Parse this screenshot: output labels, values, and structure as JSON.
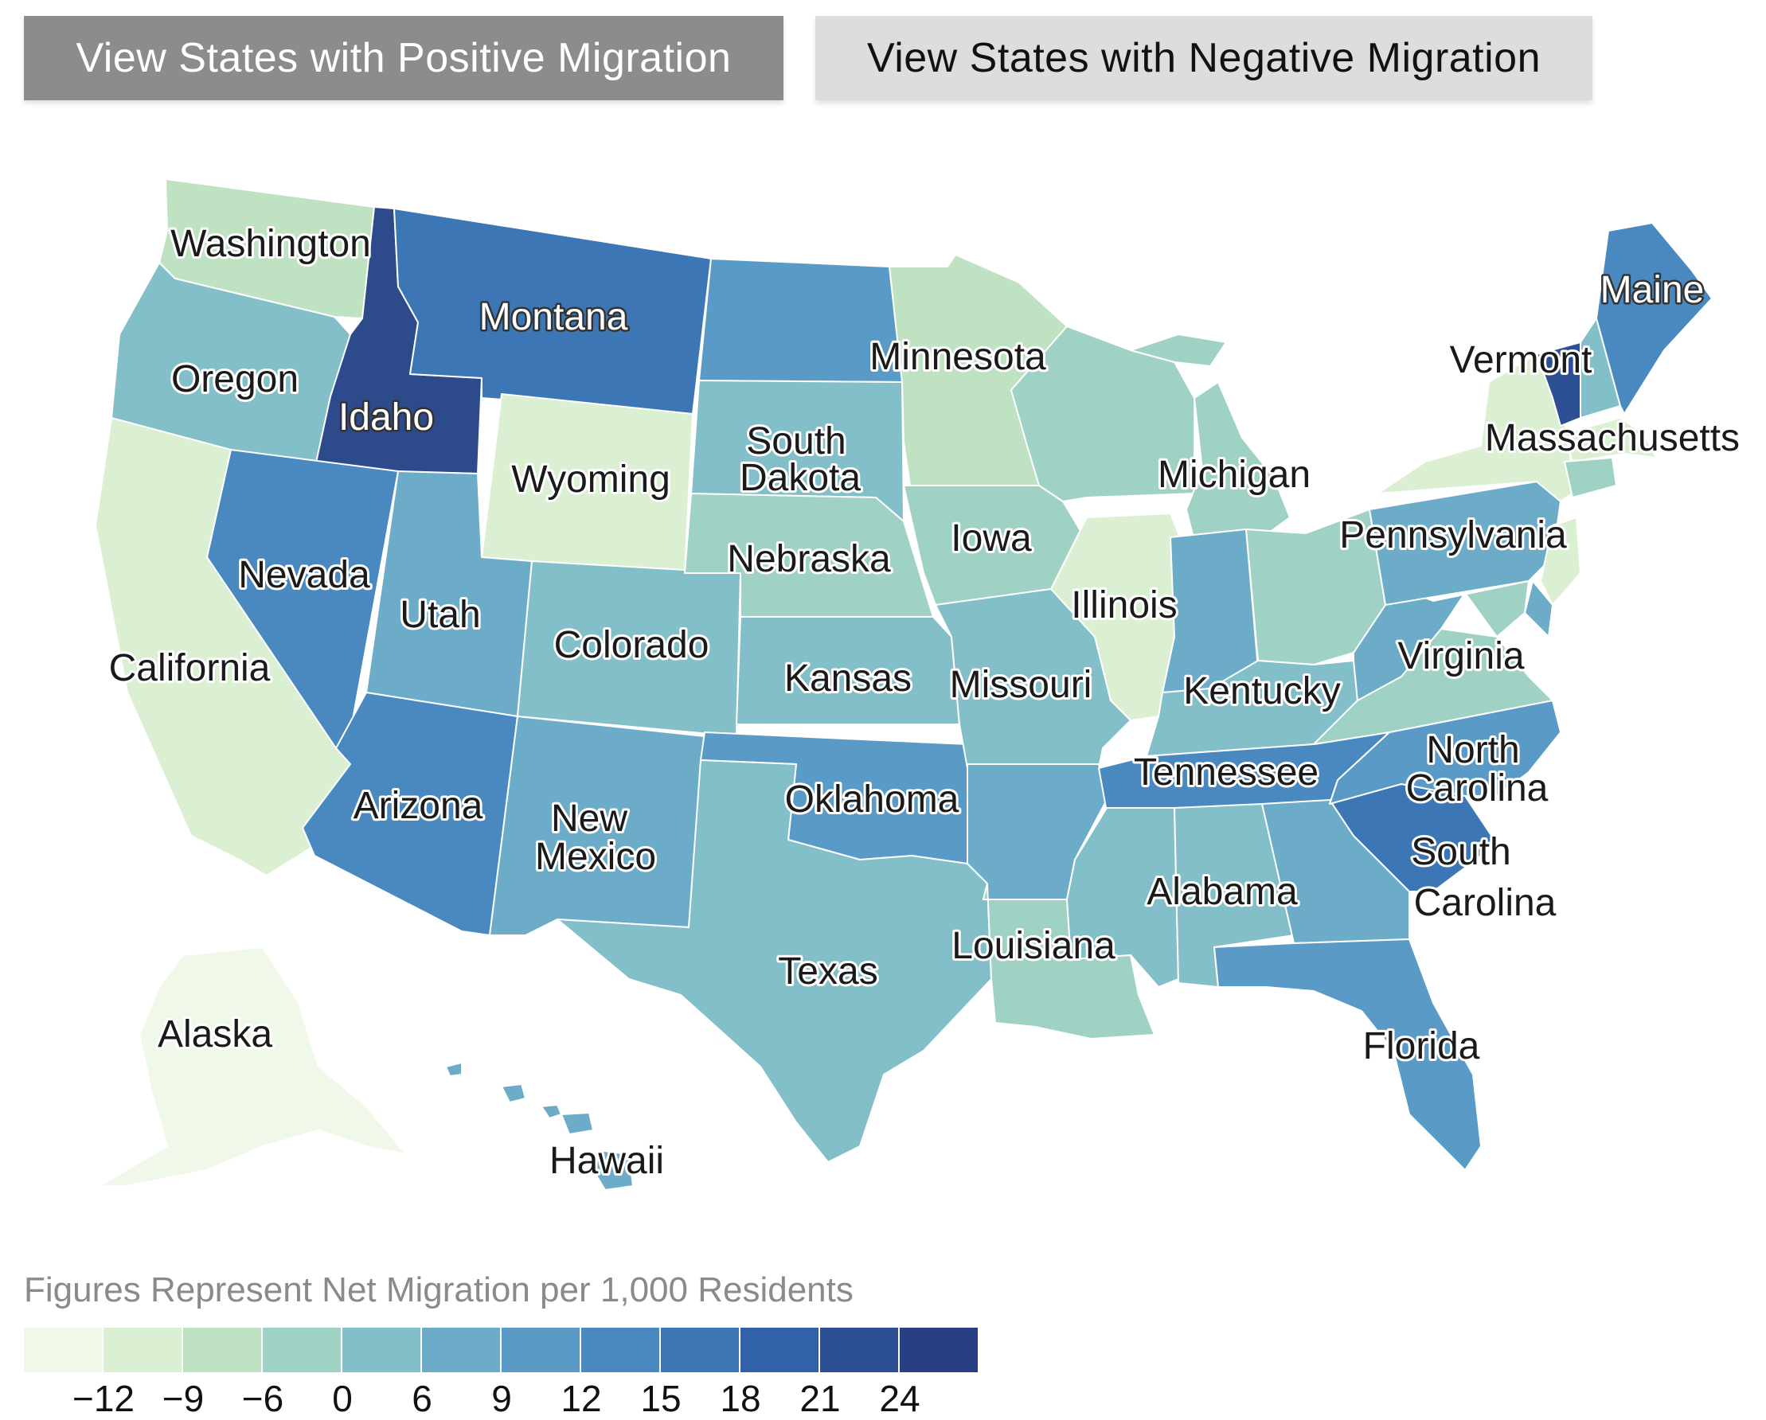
{
  "buttons": {
    "positive": "View States with Positive Migration",
    "negative": "View States with Negative Migration"
  },
  "legend": {
    "title": "Figures Represent Net Migration per 1,000 Residents",
    "colors": [
      "#f0f8e9",
      "#dbf0d3",
      "#bfe3c2",
      "#9fd2c5",
      "#82bfc8",
      "#6cacc9",
      "#5a9ac6",
      "#4a89c0",
      "#3c76b5",
      "#3162a8",
      "#2d4f94",
      "#283f86"
    ],
    "ticks": [
      "−12",
      "−9",
      "−6",
      "0",
      "6",
      "9",
      "12",
      "15",
      "18",
      "21",
      "24"
    ]
  },
  "states": [
    {
      "name": "Washington",
      "color": "#bfe3c2"
    },
    {
      "name": "Oregon",
      "color": "#82bfc8"
    },
    {
      "name": "California",
      "color": "#dbf0d3"
    },
    {
      "name": "Idaho",
      "color": "#2d4a8a"
    },
    {
      "name": "Nevada",
      "color": "#4a89c0"
    },
    {
      "name": "Montana",
      "color": "#3c76b5"
    },
    {
      "name": "Wyoming",
      "color": "#dbf0d3"
    },
    {
      "name": "Utah",
      "color": "#6cacc9"
    },
    {
      "name": "Arizona",
      "color": "#4a89c0"
    },
    {
      "name": "Colorado",
      "color": "#82bfc8"
    },
    {
      "name": "New Mexico",
      "color": "#6cacc9"
    },
    {
      "name": "North Dakota",
      "color": "#5a9ac6"
    },
    {
      "name": "South Dakota",
      "color": "#82bfc8"
    },
    {
      "name": "Nebraska",
      "color": "#9fd2c5"
    },
    {
      "name": "Kansas",
      "color": "#82bfc8"
    },
    {
      "name": "Oklahoma",
      "color": "#5a9ac6"
    },
    {
      "name": "Texas",
      "color": "#82bfc8"
    },
    {
      "name": "Minnesota",
      "color": "#bfe3c2"
    },
    {
      "name": "Iowa",
      "color": "#9fd2c5"
    },
    {
      "name": "Missouri",
      "color": "#82bfc8"
    },
    {
      "name": "Arkansas",
      "color": "#6cacc9"
    },
    {
      "name": "Louisiana",
      "color": "#9fd2c5"
    },
    {
      "name": "Wisconsin",
      "color": "#9fd2c5"
    },
    {
      "name": "Michigan",
      "color": "#9fd2c5"
    },
    {
      "name": "Illinois",
      "color": "#dbf0d3"
    },
    {
      "name": "Indiana",
      "color": "#6cacc9"
    },
    {
      "name": "Ohio",
      "color": "#9fd2c5"
    },
    {
      "name": "Kentucky",
      "color": "#82bfc8"
    },
    {
      "name": "Tennessee",
      "color": "#4a89c0"
    },
    {
      "name": "Mississippi",
      "color": "#82bfc8"
    },
    {
      "name": "Alabama",
      "color": "#82bfc8"
    },
    {
      "name": "Georgia",
      "color": "#6cacc9"
    },
    {
      "name": "Florida",
      "color": "#5a9ac6"
    },
    {
      "name": "South Carolina",
      "color": "#3c76b5"
    },
    {
      "name": "North Carolina",
      "color": "#5a9ac6"
    },
    {
      "name": "Virginia",
      "color": "#9fd2c5"
    },
    {
      "name": "West Virginia",
      "color": "#6cacc9"
    },
    {
      "name": "Pennsylvania",
      "color": "#6cacc9"
    },
    {
      "name": "New York",
      "color": "#dbf0d3"
    },
    {
      "name": "Vermont",
      "color": "#2d4f94"
    },
    {
      "name": "New Hampshire",
      "color": "#82bfc8"
    },
    {
      "name": "Maine",
      "color": "#4a89c0"
    },
    {
      "name": "Massachusetts",
      "color": "#dbf0d3"
    },
    {
      "name": "Connecticut",
      "color": "#9fd2c5"
    },
    {
      "name": "New Jersey",
      "color": "#dbf0d3"
    },
    {
      "name": "Delaware",
      "color": "#6cacc9"
    },
    {
      "name": "Maryland",
      "color": "#9fd2c5"
    },
    {
      "name": "Alaska",
      "color": "#f0f8e9"
    },
    {
      "name": "Hawaii",
      "color": "#6cacc9"
    }
  ],
  "labels": [
    "Washington",
    "Oregon",
    "California",
    "Idaho",
    "Nevada",
    "Montana",
    "Wyoming",
    "Utah",
    "Arizona",
    "Colorado",
    "New",
    "Mexico",
    "Minnesota",
    "South",
    "Dakota",
    "Nebraska",
    "Kansas",
    "Oklahoma",
    "Texas",
    "Iowa",
    "Missouri",
    "Louisiana",
    "Michigan",
    "Illinois",
    "Kentucky",
    "Tennessee",
    "Alabama",
    "Pennsylvania",
    "Virginia",
    "North",
    "Carolina",
    "South",
    "Carolina",
    "Florida",
    "Maine",
    "Vermont",
    "Massachusetts",
    "Alaska",
    "Hawaii"
  ]
}
